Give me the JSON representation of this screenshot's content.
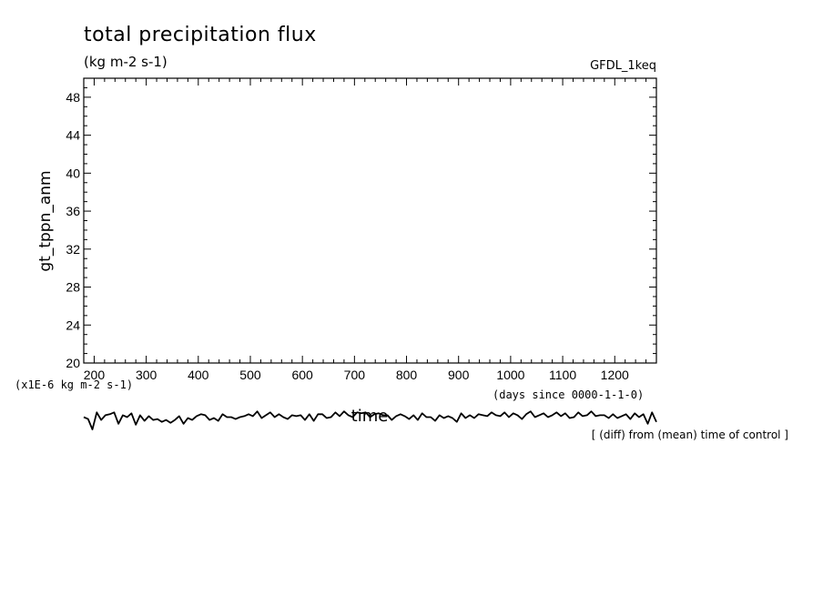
{
  "chart_data": {
    "type": "line",
    "title": "total precipitation flux",
    "units": "(kg m-2 s-1)",
    "model": "GFDL_1keq",
    "ylabel": "gt_tppn_anm",
    "xlabel": "time",
    "y_scale_note": "(x1E-6 kg m-2 s-1)",
    "x_unit_note": "(days since 0000-1-1-0)",
    "footnote": "[ (diff) from (mean) time of control ]",
    "xlim": [
      180,
      1280
    ],
    "ylim": [
      20,
      50
    ],
    "x_ticks": [
      "200",
      "300",
      "400",
      "500",
      "600",
      "700",
      "800",
      "900",
      "1000",
      "1100",
      "1200"
    ],
    "y_ticks": [
      "20",
      "24",
      "28",
      "32",
      "36",
      "40",
      "44",
      "48"
    ],
    "grid": false,
    "series": [
      {
        "values": [
          14.3,
          14.1,
          13.0,
          14.8,
          14.0,
          14.5,
          14.6,
          14.8,
          13.6,
          14.5,
          14.3,
          14.7,
          13.5,
          14.5,
          13.9,
          14.4,
          14.0,
          14.1,
          13.8,
          14.0,
          13.7,
          14.0,
          14.4,
          13.6,
          14.2,
          14.0,
          14.4,
          14.6,
          14.5,
          14.0,
          14.2,
          13.9,
          14.6,
          14.3,
          14.3,
          14.1,
          14.3,
          14.4,
          14.6,
          14.4,
          14.9,
          14.2,
          14.5,
          14.8,
          14.3,
          14.6,
          14.3,
          14.1,
          14.5,
          14.4,
          14.5,
          14.0,
          14.6,
          13.9,
          14.6,
          14.6,
          14.2,
          14.3,
          14.8,
          14.4,
          14.9,
          14.5,
          14.3,
          14.8,
          14.7,
          14.8,
          14.3,
          14.6,
          14.7,
          14.5,
          14.5,
          14.0,
          14.4,
          14.6,
          14.4,
          14.1,
          14.5,
          14.0,
          14.7,
          14.3,
          14.3,
          13.9,
          14.5,
          14.2,
          14.4,
          14.2,
          13.8,
          14.7,
          14.2,
          14.5,
          14.2,
          14.6,
          14.5,
          14.4,
          14.8,
          14.5,
          14.4,
          14.8,
          14.3,
          14.7,
          14.5,
          14.1,
          14.6,
          14.9,
          14.3,
          14.5,
          14.7,
          14.3,
          14.5,
          14.8,
          14.4,
          14.7,
          14.2,
          14.3,
          14.8,
          14.4,
          14.5,
          14.9,
          14.4,
          14.5,
          14.5,
          14.2,
          14.6,
          14.2,
          14.4,
          14.6,
          14.1,
          14.7,
          14.3,
          14.6,
          13.6,
          14.8,
          13.8
        ]
      }
    ]
  }
}
